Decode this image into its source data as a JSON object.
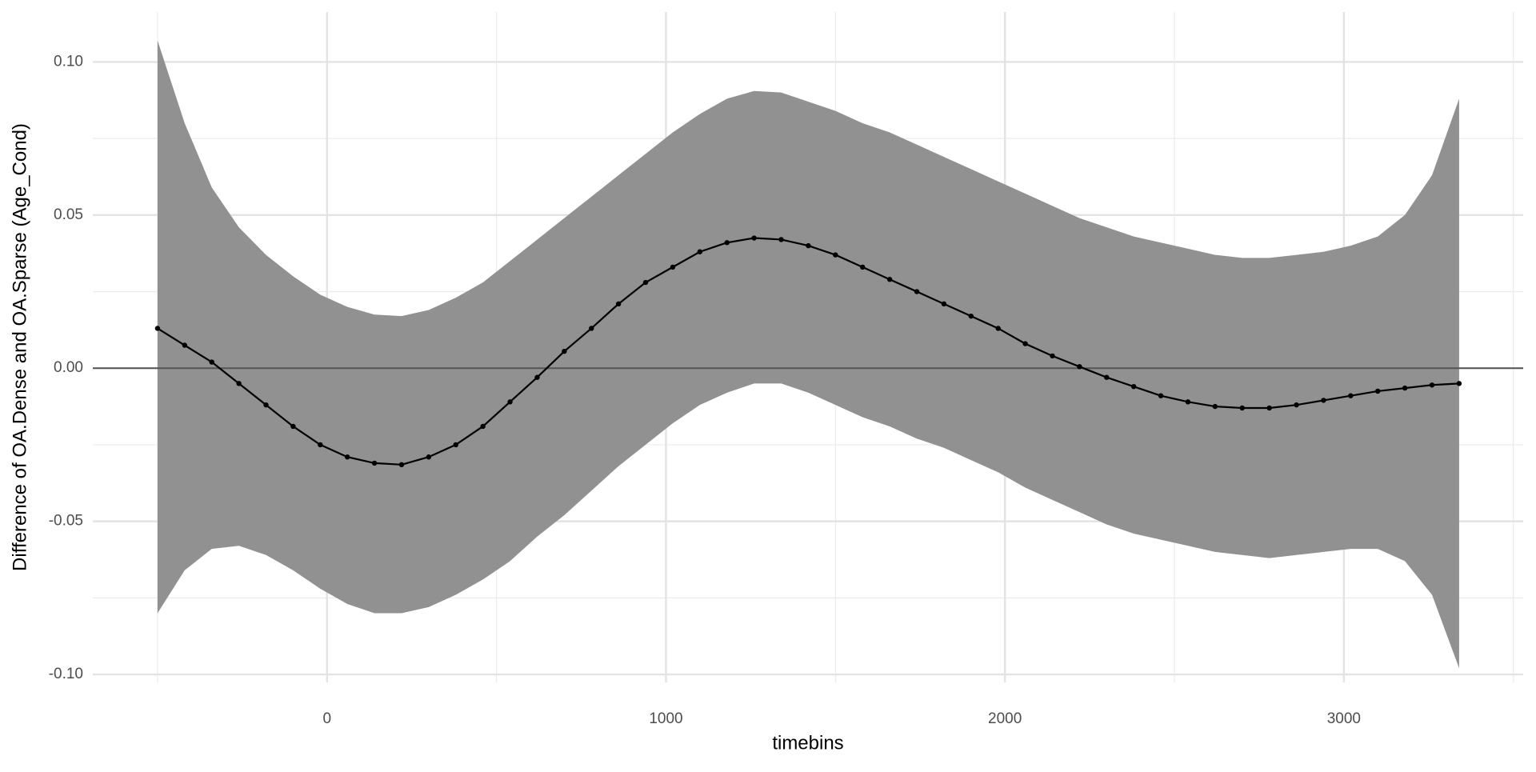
{
  "chart_data": {
    "type": "ribbon-line",
    "x_label": "timebins",
    "y_label": "Difference of OA.Dense and OA.Sparse (Age_Cond)",
    "xlim": [
      -691,
      3529
    ],
    "ylim": [
      -0.1026,
      0.1163
    ],
    "xticks": [
      0,
      1000,
      2000,
      3000
    ],
    "xminor": [
      -500,
      500,
      1500,
      2500,
      3500
    ],
    "yticks": [
      {
        "value": 0.1,
        "label": "0.10"
      },
      {
        "value": 0.05,
        "label": "0.05"
      },
      {
        "value": 0,
        "label": "0.00"
      },
      {
        "value": -0.05,
        "label": "-0.05"
      },
      {
        "value": -0.1,
        "label": "-0.10"
      }
    ],
    "yminor": [
      0.075,
      0.025,
      -0.025,
      -0.075
    ],
    "hline": 0,
    "grid": true,
    "color": "#000000",
    "band_color": "#919191",
    "x": [
      -500,
      -420,
      -340,
      -260,
      -180,
      -100,
      -20,
      60,
      140,
      220,
      300,
      380,
      460,
      540,
      620,
      700,
      780,
      860,
      940,
      1020,
      1100,
      1180,
      1260,
      1340,
      1420,
      1500,
      1580,
      1660,
      1740,
      1820,
      1900,
      1980,
      2060,
      2140,
      2220,
      2300,
      2380,
      2460,
      2540,
      2620,
      2700,
      2780,
      2860,
      2940,
      3020,
      3100,
      3180,
      3260,
      3340
    ],
    "values": [
      0.013,
      0.0075,
      0.002,
      -0.005,
      -0.012,
      -0.019,
      -0.025,
      -0.029,
      -0.031,
      -0.0315,
      -0.029,
      -0.025,
      -0.019,
      -0.011,
      -0.003,
      0.0055,
      0.013,
      0.021,
      0.028,
      0.033,
      0.038,
      0.041,
      0.0425,
      0.042,
      0.04,
      0.037,
      0.033,
      0.029,
      0.025,
      0.021,
      0.017,
      0.013,
      0.008,
      0.004,
      0.0005,
      -0.003,
      -0.006,
      -0.009,
      -0.011,
      -0.0125,
      -0.013,
      -0.013,
      -0.012,
      -0.0105,
      -0.009,
      -0.0075,
      -0.0065,
      -0.0055,
      -0.005
    ],
    "upper": [
      0.107,
      0.08,
      0.059,
      0.046,
      0.037,
      0.03,
      0.024,
      0.02,
      0.0175,
      0.017,
      0.019,
      0.023,
      0.028,
      0.035,
      0.042,
      0.049,
      0.056,
      0.063,
      0.07,
      0.077,
      0.083,
      0.088,
      0.0905,
      0.09,
      0.087,
      0.084,
      0.08,
      0.077,
      0.073,
      0.069,
      0.065,
      0.061,
      0.057,
      0.053,
      0.049,
      0.046,
      0.043,
      0.041,
      0.039,
      0.037,
      0.036,
      0.036,
      0.037,
      0.038,
      0.04,
      0.043,
      0.05,
      0.063,
      0.088
    ],
    "lower": [
      -0.08,
      -0.066,
      -0.059,
      -0.058,
      -0.061,
      -0.066,
      -0.072,
      -0.077,
      -0.08,
      -0.08,
      -0.078,
      -0.074,
      -0.069,
      -0.063,
      -0.055,
      -0.048,
      -0.04,
      -0.032,
      -0.025,
      -0.018,
      -0.012,
      -0.008,
      -0.005,
      -0.005,
      -0.008,
      -0.012,
      -0.016,
      -0.019,
      -0.023,
      -0.026,
      -0.03,
      -0.034,
      -0.039,
      -0.043,
      -0.047,
      -0.051,
      -0.054,
      -0.056,
      -0.058,
      -0.06,
      -0.061,
      -0.062,
      -0.061,
      -0.06,
      -0.059,
      -0.059,
      -0.063,
      -0.074,
      -0.098
    ]
  }
}
